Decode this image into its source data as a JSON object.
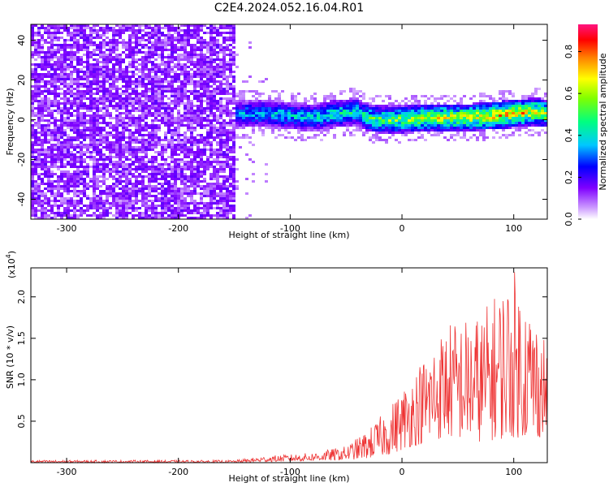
{
  "title": "C2E4.2024.052.16.04.R01",
  "chart_data": [
    {
      "type": "heatmap",
      "xlabel": "Height of straight line (km)",
      "ylabel": "Frequency (Hz)",
      "xlim": [
        -332,
        130
      ],
      "ylim": [
        -50,
        48
      ],
      "xticks": [
        "-300",
        "-200",
        "-100",
        "0",
        "100"
      ],
      "yticks": [
        "-40",
        "-20",
        "0",
        "20",
        "40"
      ],
      "noise_region_x": [
        -332,
        -150
      ],
      "ridge": [
        {
          "x": -152,
          "y": 2,
          "amp": 0.35
        },
        {
          "x": -140,
          "y": 3,
          "amp": 0.4
        },
        {
          "x": -120,
          "y": 3,
          "amp": 0.45
        },
        {
          "x": -100,
          "y": 2,
          "amp": 0.45
        },
        {
          "x": -80,
          "y": 1,
          "amp": 0.45
        },
        {
          "x": -60,
          "y": 3,
          "amp": 0.5
        },
        {
          "x": -40,
          "y": 4,
          "amp": 0.5
        },
        {
          "x": -30,
          "y": 1,
          "amp": 0.55
        },
        {
          "x": -20,
          "y": 0,
          "amp": 0.6
        },
        {
          "x": 0,
          "y": 0,
          "amp": 0.65
        },
        {
          "x": 20,
          "y": 1,
          "amp": 0.7
        },
        {
          "x": 40,
          "y": 1,
          "amp": 0.75
        },
        {
          "x": 60,
          "y": 1,
          "amp": 0.75
        },
        {
          "x": 80,
          "y": 2,
          "amp": 0.8
        },
        {
          "x": 100,
          "y": 3,
          "amp": 0.8
        },
        {
          "x": 120,
          "y": 4,
          "amp": 0.75
        },
        {
          "x": 130,
          "y": 3,
          "amp": 0.7
        }
      ],
      "colorbar": {
        "label": "Normalized spectral amplitude",
        "ticks": [
          "0.0",
          "0.2",
          "0.4",
          "0.6",
          "0.8"
        ],
        "range": [
          0,
          0.93
        ]
      }
    },
    {
      "type": "line",
      "xlabel": "Height of straight line (km)",
      "ylabel": "SNR (10 * v/v)",
      "y_multiplier_label": "(x10",
      "y_multiplier_exp": "4",
      "y_multiplier_close": ")",
      "xlim": [
        -332,
        130
      ],
      "ylim": [
        0,
        2.35
      ],
      "xticks": [
        "-300",
        "-200",
        "-100",
        "0",
        "100"
      ],
      "yticks": [
        "0.5",
        "1.0",
        "1.5",
        "2.0"
      ],
      "series_color": "#ee3333",
      "envelope": [
        {
          "x": -332,
          "lo": 0.0,
          "hi": 0.03
        },
        {
          "x": -150,
          "lo": 0.0,
          "hi": 0.03
        },
        {
          "x": -120,
          "lo": 0.01,
          "hi": 0.08
        },
        {
          "x": -80,
          "lo": 0.02,
          "hi": 0.12
        },
        {
          "x": -50,
          "lo": 0.03,
          "hi": 0.2
        },
        {
          "x": -30,
          "lo": 0.05,
          "hi": 0.4
        },
        {
          "x": -10,
          "lo": 0.1,
          "hi": 0.7
        },
        {
          "x": 10,
          "lo": 0.2,
          "hi": 1.1
        },
        {
          "x": 40,
          "lo": 0.3,
          "hi": 1.7
        },
        {
          "x": 70,
          "lo": 0.25,
          "hi": 1.8
        },
        {
          "x": 100,
          "lo": 0.3,
          "hi": 2.35
        },
        {
          "x": 130,
          "lo": 0.3,
          "hi": 1.5
        }
      ]
    }
  ]
}
